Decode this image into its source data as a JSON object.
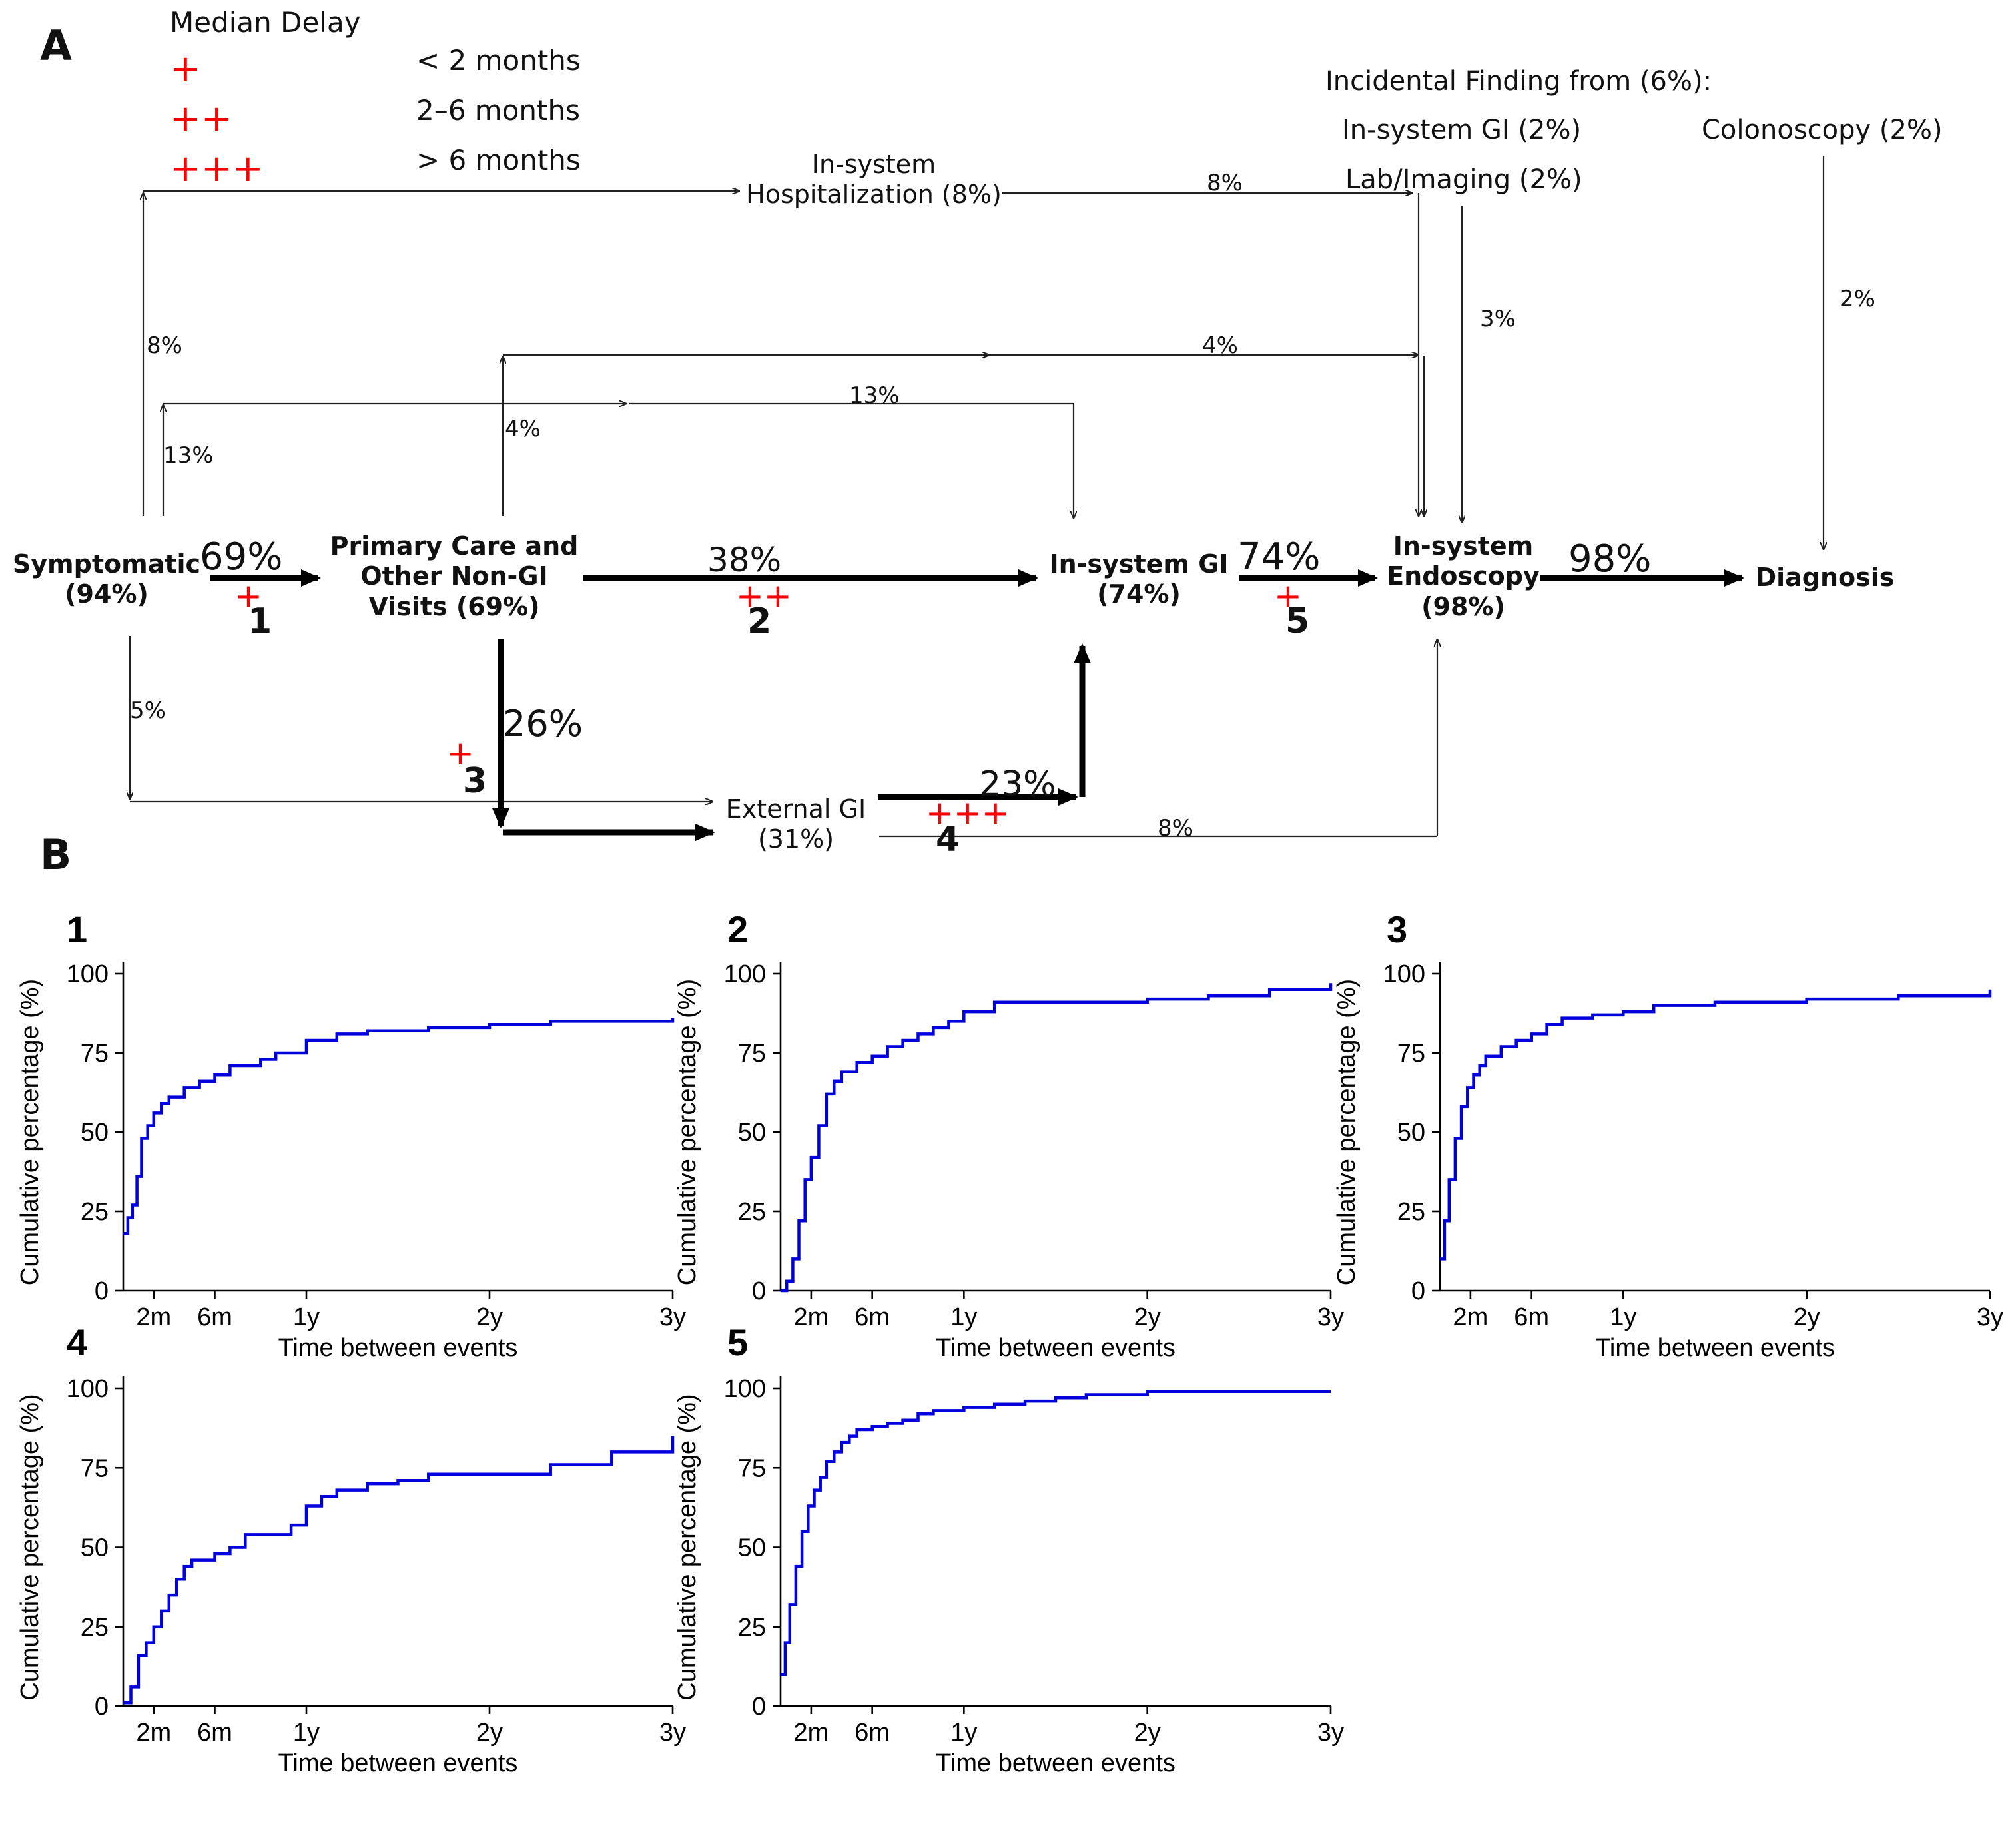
{
  "panel_labels": {
    "a": "A",
    "b": "B"
  },
  "legend": {
    "title": "Median Delay",
    "items": [
      {
        "symbol": "+",
        "label": "< 2 months"
      },
      {
        "symbol": "++",
        "label": "2–6 months"
      },
      {
        "symbol": "+++",
        "label": "> 6 months"
      }
    ]
  },
  "incidental": {
    "title": "Incidental Finding from (6%):",
    "gi": "In-system GI (2%)",
    "lab": "Lab/Imaging (2%)",
    "colonoscopy": "Colonoscopy (2%)"
  },
  "nodes": {
    "symptomatic": {
      "l1": "Symptomatic",
      "l2": "(94%)"
    },
    "primary": {
      "l1": "Primary Care and",
      "l2": "Other Non-GI",
      "l3": "Visits (69%)"
    },
    "insystem_gi": {
      "l1": "In-system GI",
      "l2": "(74%)"
    },
    "endoscopy": {
      "l1": "In-system",
      "l2": "Endoscopy",
      "l3": "(98%)"
    },
    "diagnosis": {
      "l1": "Diagnosis"
    },
    "hospitalization": {
      "l1": "In-system",
      "l2": "Hospitalization (8%)"
    },
    "external_gi": {
      "l1": "External GI",
      "l2": "(31%)"
    }
  },
  "flows": {
    "f1": "69%",
    "f2": "38%",
    "f3": "26%",
    "f4": "23%",
    "f5": "74%",
    "f6": "98%",
    "hosp_8": "8%",
    "hosp_to_endo_8": "8%",
    "prim_4": "4%",
    "endo_4": "4%",
    "sym_13": "13%",
    "gi_13": "13%",
    "sym_5": "5%",
    "ext_8": "8%",
    "lab_3": "3%",
    "colon_2": "2%"
  },
  "delays": {
    "d1": {
      "mark": "+",
      "num": "1"
    },
    "d2": {
      "mark": "++",
      "num": "2"
    },
    "d3": {
      "mark": "+",
      "num": "3"
    },
    "d4": {
      "mark": "+++",
      "num": "4"
    },
    "d5": {
      "mark": "+",
      "num": "5"
    }
  },
  "chart_data": [
    {
      "type": "line",
      "panel": "1",
      "xlabel": "Time between events",
      "ylabel": "Cumulative percentage (%)",
      "xticks": [
        {
          "v": 2,
          "label": "2m"
        },
        {
          "v": 6,
          "label": "6m"
        },
        {
          "v": 12,
          "label": "1y"
        },
        {
          "v": 24,
          "label": "2y"
        },
        {
          "v": 36,
          "label": "3y"
        }
      ],
      "yticks": [
        0,
        25,
        50,
        75,
        100
      ],
      "xlim": [
        0,
        36
      ],
      "ylim": [
        0,
        100
      ],
      "series": [
        {
          "x": [
            0,
            0.3,
            0.6,
            0.9,
            1.2,
            1.6,
            2,
            2.5,
            3,
            4,
            5,
            6,
            7,
            9,
            10,
            12,
            14,
            16,
            18,
            20,
            22,
            24,
            28,
            32,
            36
          ],
          "y": [
            18,
            23,
            27,
            36,
            48,
            52,
            56,
            59,
            61,
            64,
            66,
            68,
            71,
            73,
            75,
            79,
            81,
            82,
            82,
            83,
            83,
            84,
            85,
            85,
            86
          ]
        }
      ]
    },
    {
      "type": "line",
      "panel": "2",
      "xlabel": "Time between events",
      "ylabel": "Cumulative percentage (%)",
      "xticks": [
        {
          "v": 2,
          "label": "2m"
        },
        {
          "v": 6,
          "label": "6m"
        },
        {
          "v": 12,
          "label": "1y"
        },
        {
          "v": 24,
          "label": "2y"
        },
        {
          "v": 36,
          "label": "3y"
        }
      ],
      "yticks": [
        0,
        25,
        50,
        75,
        100
      ],
      "xlim": [
        0,
        36
      ],
      "ylim": [
        0,
        100
      ],
      "series": [
        {
          "x": [
            0,
            0.4,
            0.8,
            1.2,
            1.6,
            2,
            2.5,
            3,
            3.5,
            4,
            5,
            6,
            7,
            8,
            9,
            10,
            11,
            12,
            14,
            18,
            24,
            28,
            32,
            36
          ],
          "y": [
            0,
            3,
            10,
            22,
            35,
            42,
            52,
            62,
            66,
            69,
            72,
            74,
            77,
            79,
            81,
            83,
            85,
            88,
            91,
            91,
            92,
            93,
            95,
            97
          ]
        }
      ]
    },
    {
      "type": "line",
      "panel": "3",
      "xlabel": "Time between events",
      "ylabel": "Cumulative percentage (%)",
      "xticks": [
        {
          "v": 2,
          "label": "2m"
        },
        {
          "v": 6,
          "label": "6m"
        },
        {
          "v": 12,
          "label": "1y"
        },
        {
          "v": 24,
          "label": "2y"
        },
        {
          "v": 36,
          "label": "3y"
        }
      ],
      "yticks": [
        0,
        25,
        50,
        75,
        100
      ],
      "xlim": [
        0,
        36
      ],
      "ylim": [
        0,
        100
      ],
      "series": [
        {
          "x": [
            0,
            0.3,
            0.6,
            1,
            1.4,
            1.8,
            2.2,
            2.6,
            3,
            4,
            5,
            6,
            7,
            8,
            10,
            12,
            14,
            18,
            24,
            30,
            36
          ],
          "y": [
            10,
            22,
            35,
            48,
            58,
            64,
            68,
            71,
            74,
            77,
            79,
            81,
            84,
            86,
            87,
            88,
            90,
            91,
            92,
            93,
            95
          ]
        }
      ]
    },
    {
      "type": "line",
      "panel": "4",
      "xlabel": "Time between events",
      "ylabel": "Cumulative percentage (%)",
      "xticks": [
        {
          "v": 2,
          "label": "2m"
        },
        {
          "v": 6,
          "label": "6m"
        },
        {
          "v": 12,
          "label": "1y"
        },
        {
          "v": 24,
          "label": "2y"
        },
        {
          "v": 36,
          "label": "3y"
        }
      ],
      "yticks": [
        0,
        25,
        50,
        75,
        100
      ],
      "xlim": [
        0,
        36
      ],
      "ylim": [
        0,
        100
      ],
      "series": [
        {
          "x": [
            0,
            0.5,
            1,
            1.5,
            2,
            2.5,
            3,
            3.5,
            4,
            4.5,
            5,
            6,
            7,
            8,
            10,
            11,
            12,
            13,
            14,
            16,
            18,
            20,
            24,
            28,
            32,
            36
          ],
          "y": [
            1,
            6,
            16,
            20,
            25,
            30,
            35,
            40,
            44,
            46,
            46,
            48,
            50,
            54,
            54,
            57,
            63,
            66,
            68,
            70,
            71,
            73,
            73,
            76,
            80,
            85
          ]
        }
      ]
    },
    {
      "type": "line",
      "panel": "5",
      "xlabel": "Time between events",
      "ylabel": "Cumulative percentage (%)",
      "xticks": [
        {
          "v": 2,
          "label": "2m"
        },
        {
          "v": 6,
          "label": "6m"
        },
        {
          "v": 12,
          "label": "1y"
        },
        {
          "v": 24,
          "label": "2y"
        },
        {
          "v": 36,
          "label": "3y"
        }
      ],
      "yticks": [
        0,
        25,
        50,
        75,
        100
      ],
      "xlim": [
        0,
        36
      ],
      "ylim": [
        0,
        100
      ],
      "series": [
        {
          "x": [
            0,
            0.3,
            0.6,
            1,
            1.4,
            1.8,
            2.2,
            2.6,
            3,
            3.5,
            4,
            4.5,
            5,
            6,
            7,
            8,
            9,
            10,
            12,
            14,
            16,
            18,
            20,
            24,
            28,
            32,
            36
          ],
          "y": [
            10,
            20,
            32,
            44,
            55,
            63,
            68,
            72,
            77,
            80,
            83,
            85,
            87,
            88,
            89,
            90,
            92,
            93,
            94,
            95,
            96,
            97,
            98,
            99,
            99,
            99,
            99
          ]
        }
      ]
    }
  ]
}
